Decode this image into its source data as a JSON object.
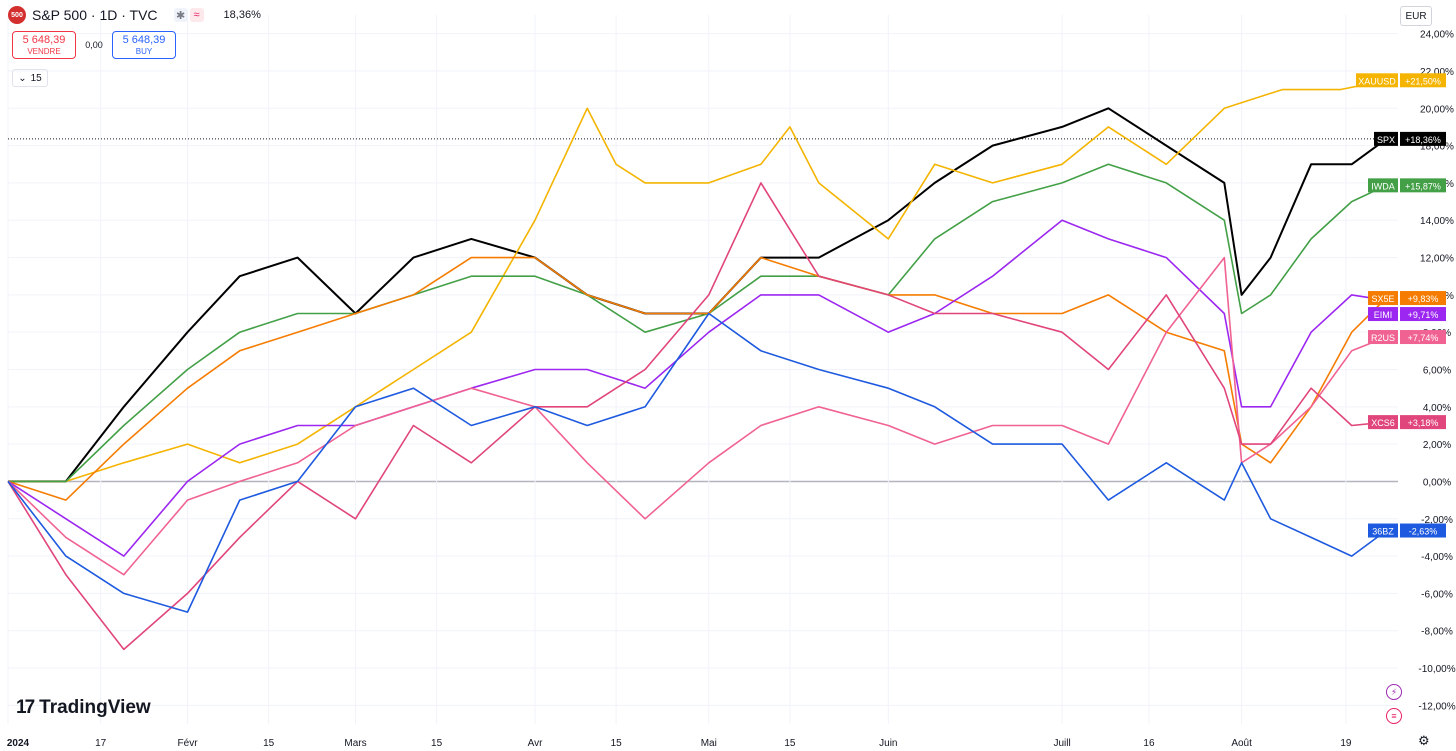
{
  "header": {
    "logo_text": "500",
    "title": "S&P 500 · 1D · TVC",
    "change": "18,36%",
    "sell_price": "5 648,39",
    "sell_label": "VENDRE",
    "spread": "0,00",
    "buy_price": "5 648,39",
    "buy_label": "BUY",
    "legend_count": "15",
    "currency": "EUR"
  },
  "watermark": "TradingView",
  "colors": {
    "SPX": "#000000",
    "XAUUSD": "#f4b400",
    "IWDA": "#43a047",
    "SX5E": "#f57c00",
    "EIMI": "#9c27f0",
    "R2US": "#f06292",
    "XCS6": "#e0457b",
    "36BZ": "#1e5adf"
  },
  "chart_data": {
    "type": "line",
    "xlabel": "",
    "ylabel": "",
    "ylim": [
      -12,
      24
    ],
    "grid": true,
    "y_ticks": [
      "24,00%",
      "22,00%",
      "20,00%",
      "18,00%",
      "16,00%",
      "14,00%",
      "12,00%",
      "10,00%",
      "8,00%",
      "6,00%",
      "4,00%",
      "2,00%",
      "0,00%",
      "-2,00%",
      "-4,00%",
      "-6,00%",
      "-8,00%",
      "-10,00%",
      "-12,00%"
    ],
    "x_ticks": [
      "2024",
      "17",
      "Févr",
      "15",
      "Mars",
      "15",
      "Avr",
      "15",
      "Mai",
      "15",
      "Juin",
      "Juill",
      "16",
      "Août",
      "19"
    ],
    "x_tick_days": [
      0,
      16,
      31,
      45,
      60,
      74,
      91,
      105,
      121,
      135,
      152,
      182,
      197,
      213,
      231
    ],
    "x_range": [
      0,
      240
    ],
    "series": [
      {
        "name": "SPX",
        "label": "+18,36%",
        "x": [
          0,
          10,
          20,
          31,
          40,
          50,
          60,
          70,
          80,
          91,
          100,
          110,
          121,
          130,
          140,
          152,
          160,
          170,
          182,
          190,
          200,
          210,
          213,
          218,
          225,
          232,
          238
        ],
        "y": [
          0,
          0,
          4,
          8,
          11,
          12,
          9,
          12,
          13,
          12,
          10,
          9,
          9,
          12,
          12,
          14,
          16,
          18,
          19,
          20,
          18,
          16,
          10,
          12,
          17,
          17,
          18.36
        ]
      },
      {
        "name": "XAUUSD",
        "label": "+21,50%",
        "x": [
          0,
          10,
          20,
          31,
          40,
          50,
          60,
          70,
          80,
          91,
          100,
          105,
          110,
          121,
          130,
          135,
          140,
          152,
          160,
          170,
          182,
          190,
          200,
          210,
          220,
          230,
          238
        ],
        "y": [
          0,
          0,
          1,
          2,
          1,
          2,
          4,
          6,
          8,
          14,
          20,
          17,
          16,
          16,
          17,
          19,
          16,
          13,
          17,
          16,
          17,
          19,
          17,
          20,
          21,
          21,
          21.5
        ]
      },
      {
        "name": "IWDA",
        "label": "+15,87%",
        "x": [
          0,
          10,
          20,
          31,
          40,
          50,
          60,
          70,
          80,
          91,
          100,
          110,
          121,
          130,
          140,
          152,
          160,
          170,
          182,
          190,
          200,
          210,
          213,
          218,
          225,
          232,
          238
        ],
        "y": [
          0,
          0,
          3,
          6,
          8,
          9,
          9,
          10,
          11,
          11,
          10,
          8,
          9,
          11,
          11,
          10,
          13,
          15,
          16,
          17,
          16,
          14,
          9,
          10,
          13,
          15,
          15.87
        ]
      },
      {
        "name": "SX5E",
        "label": "+9,83%",
        "x": [
          0,
          10,
          20,
          31,
          40,
          50,
          60,
          70,
          80,
          91,
          100,
          110,
          121,
          130,
          140,
          152,
          160,
          170,
          182,
          190,
          200,
          210,
          213,
          218,
          225,
          232,
          238
        ],
        "y": [
          0,
          -1,
          2,
          5,
          7,
          8,
          9,
          10,
          12,
          12,
          10,
          9,
          9,
          12,
          11,
          10,
          10,
          9,
          9,
          10,
          8,
          7,
          2,
          1,
          4,
          8,
          9.83
        ]
      },
      {
        "name": "EIMI",
        "label": "+9,71%",
        "x": [
          0,
          10,
          20,
          31,
          40,
          50,
          60,
          70,
          80,
          91,
          100,
          110,
          121,
          130,
          140,
          152,
          160,
          170,
          182,
          190,
          200,
          210,
          213,
          218,
          225,
          232,
          238
        ],
        "y": [
          0,
          -2,
          -4,
          0,
          2,
          3,
          3,
          4,
          5,
          6,
          6,
          5,
          8,
          10,
          10,
          8,
          9,
          11,
          14,
          13,
          12,
          9,
          4,
          4,
          8,
          10,
          9.71
        ]
      },
      {
        "name": "R2US",
        "label": "+7,74%",
        "x": [
          0,
          10,
          20,
          31,
          40,
          50,
          60,
          70,
          80,
          91,
          100,
          110,
          121,
          130,
          140,
          152,
          160,
          170,
          182,
          190,
          200,
          210,
          213,
          218,
          225,
          232,
          238
        ],
        "y": [
          0,
          -3,
          -5,
          -1,
          0,
          1,
          3,
          4,
          5,
          4,
          1,
          -2,
          1,
          3,
          4,
          3,
          2,
          3,
          3,
          2,
          8,
          12,
          1,
          2,
          4,
          7,
          7.74
        ]
      },
      {
        "name": "XCS6",
        "label": "+3,18%",
        "x": [
          0,
          10,
          20,
          31,
          40,
          50,
          60,
          70,
          80,
          91,
          100,
          110,
          121,
          130,
          140,
          152,
          160,
          170,
          182,
          190,
          200,
          210,
          213,
          218,
          225,
          232,
          238
        ],
        "y": [
          0,
          -5,
          -9,
          -6,
          -3,
          0,
          -2,
          3,
          1,
          4,
          4,
          6,
          10,
          16,
          11,
          10,
          9,
          9,
          8,
          6,
          10,
          5,
          2,
          2,
          5,
          3,
          3.18
        ]
      },
      {
        "name": "36BZ",
        "label": "-2,63%",
        "x": [
          0,
          10,
          20,
          31,
          40,
          50,
          60,
          70,
          80,
          91,
          100,
          110,
          121,
          130,
          140,
          152,
          160,
          170,
          182,
          190,
          200,
          210,
          213,
          218,
          225,
          232,
          238
        ],
        "y": [
          0,
          -4,
          -6,
          -7,
          -1,
          0,
          4,
          5,
          3,
          4,
          3,
          4,
          9,
          7,
          6,
          5,
          4,
          2,
          2,
          -1,
          1,
          -1,
          1,
          -2,
          -3,
          -4,
          -2.63
        ]
      }
    ]
  }
}
